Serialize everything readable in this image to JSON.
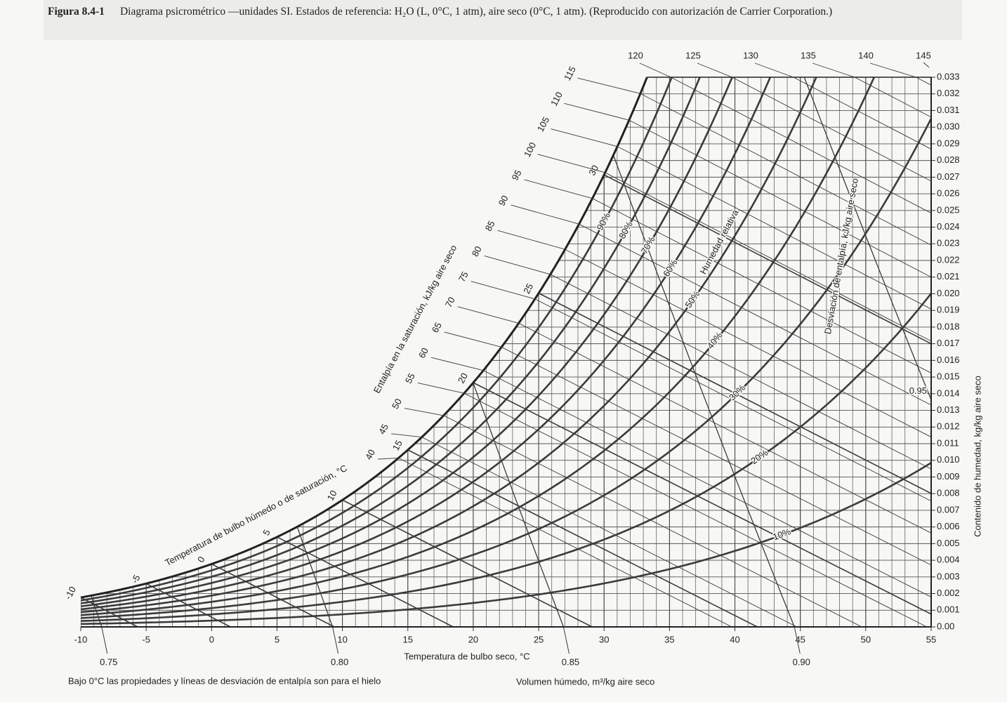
{
  "caption": {
    "number": "Figura 8.4-1",
    "text": "Diagrama psicrométrico —unidades SI. Estados de referencia: H₂O (L, 0°C, 1 atm), aire seco (0°C, 1 atm). (Reproducido con autorización de Carrier Corporation.)"
  },
  "chart_data": {
    "type": "psychrometric",
    "x_label": "Temperatura de bulbo seco, °C",
    "y_label": "Contenido de humedad, kg/kg aire seco",
    "volume_label": "Volumen húmedo, m³/kg aire seco",
    "note": "Bajo 0°C las propiedades y líneas de desviación de entalpía son para el hielo",
    "enthalpy_scale_label": "Entalpía en la saturación, kJ/kg aire seco",
    "wet_bulb_label": "Temperatura de bulbo húmedo o de saturación, °C",
    "rh_label": "Humedad relativa",
    "deviation_label": "Desviación de entalpía, kJ/kg aire seco",
    "xlim": [
      -10,
      55
    ],
    "xticks": [
      -10,
      -5,
      0,
      5,
      10,
      15,
      20,
      25,
      30,
      35,
      40,
      45,
      50,
      55
    ],
    "ylim": [
      0,
      0.033
    ],
    "yticks": [
      {
        "value": 0,
        "label": "0.00"
      },
      0.001,
      0.002,
      0.003,
      0.004,
      0.005,
      0.006,
      0.007,
      0.008,
      0.009,
      {
        "value": 0.01,
        "label": "0.010"
      },
      0.011,
      0.012,
      0.013,
      0.014,
      0.015,
      0.016,
      0.017,
      0.018,
      0.019,
      {
        "value": 0.02,
        "label": "0.020"
      },
      0.021,
      0.022,
      0.023,
      0.024,
      0.025,
      0.026,
      0.027,
      0.028,
      0.029,
      {
        "value": 0.03,
        "label": "0.030"
      },
      0.031,
      0.032,
      0.033
    ],
    "grid": true,
    "color": "#3b3b3b",
    "relative_humidity": {
      "values": [
        10,
        20,
        30,
        40,
        50,
        60,
        70,
        80,
        90
      ],
      "value_labels": [
        "10%",
        "20%",
        "30%",
        "40%",
        "50%",
        "60%",
        "70%",
        "80%",
        "90%"
      ]
    },
    "saturation_enthalpy": {
      "values": [
        40,
        45,
        50,
        55,
        60,
        65,
        70,
        75,
        80,
        85,
        90,
        95,
        100,
        105,
        110,
        115,
        120,
        125,
        130,
        135,
        140,
        145
      ]
    },
    "wet_bulb": {
      "values": [
        -10,
        -5,
        0,
        5,
        10,
        15,
        20,
        25,
        30
      ]
    },
    "specific_volume": {
      "values": [
        0.75,
        0.8,
        0.85,
        0.9,
        0.95
      ],
      "value_labels": [
        "0.75",
        "0.80",
        "0.85",
        "0.90",
        "0.95"
      ]
    }
  }
}
